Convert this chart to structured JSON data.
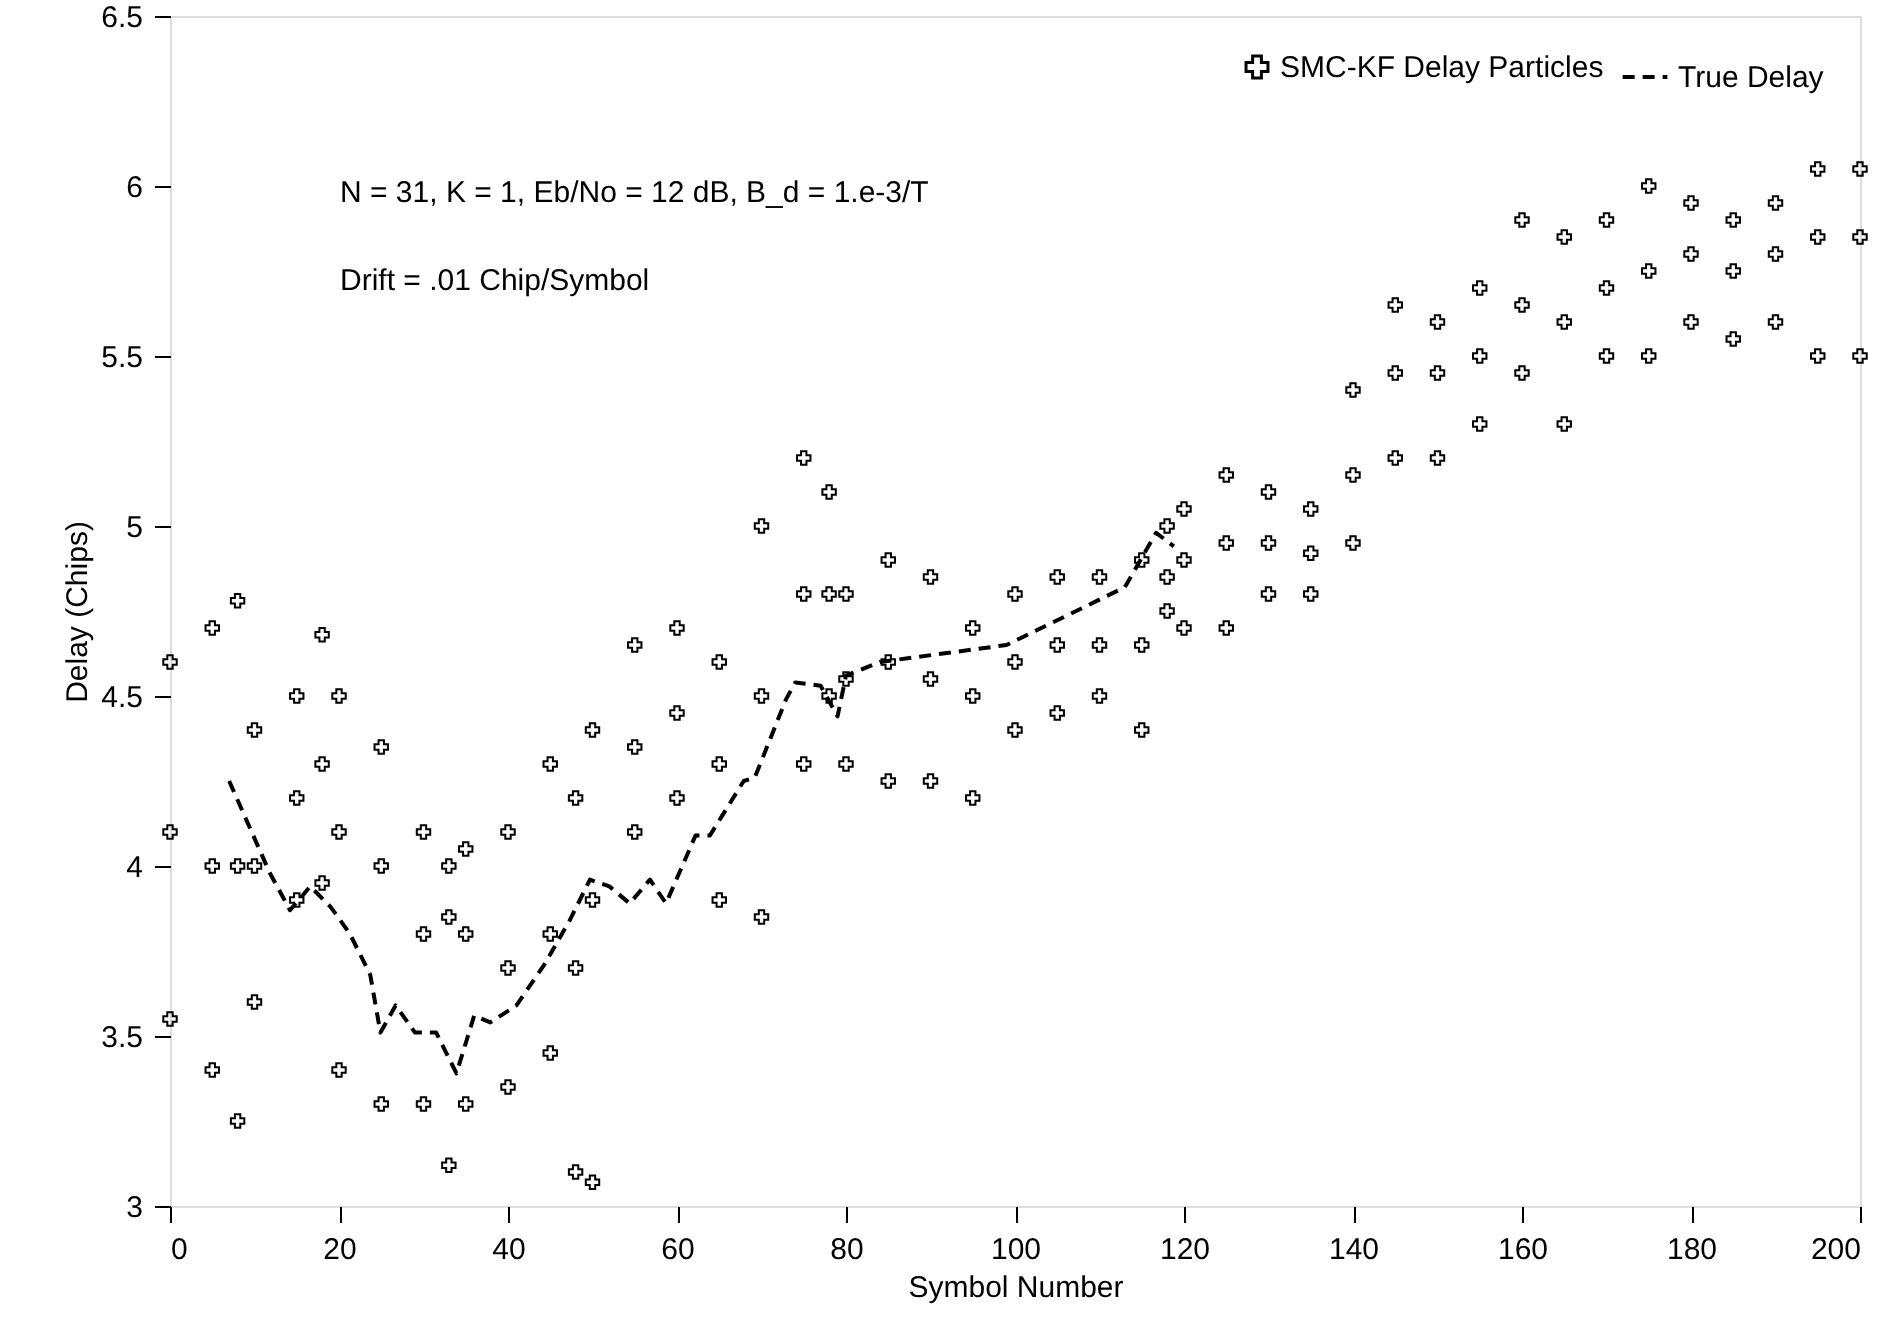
{
  "chart_data": {
    "type": "scatter",
    "xlabel": "Symbol Number",
    "ylabel": "Delay (Chips)",
    "xlim": [
      0,
      200
    ],
    "ylim": [
      3,
      6.5
    ],
    "xticks": [
      0,
      20,
      40,
      60,
      80,
      100,
      120,
      140,
      160,
      180,
      200
    ],
    "yticks": [
      3,
      3.5,
      4,
      4.5,
      5,
      5.5,
      6,
      6.5
    ],
    "grid": false,
    "legend": "top right",
    "annotations": [
      "N = 31, K = 1, Eb/No = 12 dB, B_d = 1.e-3/T",
      "Drift = .01 Chip/Symbol"
    ],
    "series": [
      {
        "name": "SMC-KF Delay Particles",
        "marker": "cross",
        "color": "#000000",
        "x": [
          0,
          0,
          0,
          5,
          5,
          5,
          8,
          8,
          8,
          10,
          10,
          10,
          15,
          15,
          15,
          18,
          18,
          18,
          20,
          20,
          20,
          25,
          25,
          25,
          30,
          30,
          30,
          33,
          33,
          33,
          35,
          35,
          35,
          40,
          40,
          40,
          45,
          45,
          45,
          48,
          48,
          48,
          50,
          50,
          50,
          55,
          55,
          55,
          60,
          60,
          60,
          65,
          65,
          65,
          70,
          70,
          70,
          75,
          75,
          75,
          78,
          78,
          78,
          80,
          80,
          80,
          85,
          85,
          85,
          90,
          90,
          90,
          95,
          95,
          95,
          100,
          100,
          100,
          105,
          105,
          105,
          110,
          110,
          110,
          115,
          115,
          115,
          118,
          118,
          118,
          120,
          120,
          120,
          125,
          125,
          125,
          130,
          130,
          130,
          135,
          135,
          135,
          140,
          140,
          140,
          145,
          145,
          145,
          150,
          150,
          150,
          155,
          155,
          155,
          160,
          160,
          160,
          165,
          165,
          165,
          170,
          170,
          170,
          175,
          175,
          175,
          180,
          180,
          180,
          185,
          185,
          185,
          190,
          190,
          190,
          195,
          195,
          195,
          200,
          200,
          200
        ],
        "values": [
          3.55,
          4.1,
          4.6,
          3.4,
          4.0,
          4.7,
          3.25,
          4.0,
          4.78,
          3.6,
          4.0,
          4.4,
          3.9,
          4.2,
          4.5,
          3.95,
          4.3,
          4.68,
          3.4,
          4.1,
          4.5,
          3.3,
          4.0,
          4.35,
          3.3,
          3.8,
          4.1,
          3.12,
          3.85,
          4.0,
          3.3,
          3.8,
          4.05,
          3.35,
          3.7,
          4.1,
          3.45,
          3.8,
          4.3,
          3.1,
          3.7,
          4.2,
          3.07,
          3.9,
          4.4,
          4.1,
          4.35,
          4.65,
          4.2,
          4.45,
          4.7,
          3.9,
          4.3,
          4.6,
          3.85,
          4.5,
          5.0,
          4.3,
          4.8,
          5.2,
          4.5,
          4.8,
          5.1,
          4.3,
          4.55,
          4.8,
          4.25,
          4.6,
          4.9,
          4.25,
          4.55,
          4.85,
          4.2,
          4.5,
          4.7,
          4.4,
          4.6,
          4.8,
          4.45,
          4.65,
          4.85,
          4.5,
          4.65,
          4.85,
          4.4,
          4.65,
          4.9,
          4.75,
          4.85,
          5.0,
          4.7,
          4.9,
          5.05,
          4.7,
          4.95,
          5.15,
          4.8,
          4.95,
          5.1,
          4.8,
          4.92,
          5.05,
          4.95,
          5.15,
          5.4,
          5.2,
          5.45,
          5.65,
          5.2,
          5.45,
          5.6,
          5.3,
          5.5,
          5.7,
          5.45,
          5.65,
          5.9,
          5.3,
          5.6,
          5.85,
          5.5,
          5.7,
          5.9,
          5.5,
          5.75,
          6.0,
          5.6,
          5.8,
          5.95,
          5.55,
          5.75,
          5.9,
          5.6,
          5.8,
          5.95,
          5.5,
          5.85,
          6.05,
          5.5,
          5.85,
          6.05
        ]
      },
      {
        "name": "True Delay",
        "type": "line",
        "line_style": "dashed",
        "color": "#000000",
        "x": [
          7,
          11.8,
          14.2,
          16.6,
          19,
          21.3,
          23.7,
          24.9,
          26.7,
          29,
          31.5,
          33.9,
          36,
          37.9,
          41,
          44.3,
          47.3,
          49.7,
          52,
          54.4,
          56.8,
          58.7,
          62.2,
          63.9,
          67.9,
          69.2,
          72.9,
          74,
          77,
          79,
          80,
          84,
          99,
          113,
          116.7,
          118.8
        ],
        "values": [
          4.25,
          3.98,
          3.87,
          3.94,
          3.88,
          3.8,
          3.68,
          3.51,
          3.59,
          3.51,
          3.51,
          3.39,
          3.56,
          3.54,
          3.59,
          3.71,
          3.84,
          3.96,
          3.94,
          3.89,
          3.96,
          3.89,
          4.09,
          4.09,
          4.25,
          4.26,
          4.49,
          4.54,
          4.53,
          4.44,
          4.56,
          4.6,
          4.65,
          4.82,
          4.98,
          4.94
        ]
      }
    ]
  }
}
